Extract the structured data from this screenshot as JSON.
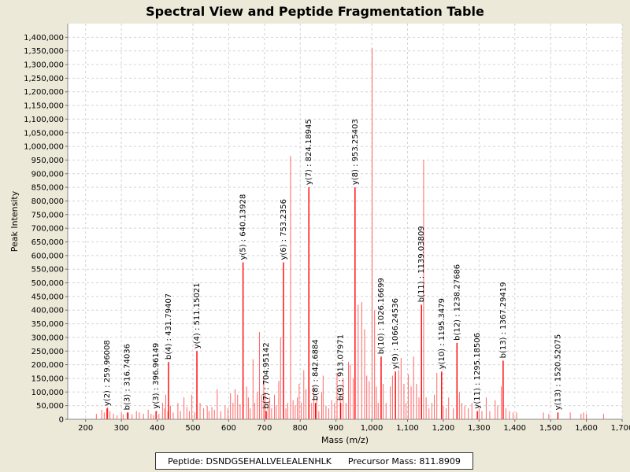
{
  "chart_data": {
    "type": "bar",
    "title": "Spectral View and Peptide Fragmentation Table",
    "xlabel": "Mass (m/z)",
    "ylabel": "Peak Intensity",
    "xlim": [
      150,
      1700
    ],
    "ylim": [
      0,
      1450000
    ],
    "grid": true,
    "x_ticks": [
      200,
      300,
      400,
      500,
      600,
      700,
      800,
      900,
      1000,
      1100,
      1200,
      1300,
      1400,
      1500,
      1600,
      1700
    ],
    "x_tick_labels": [
      "200",
      "300",
      "400",
      "500",
      "600",
      "700",
      "800",
      "900",
      "1,000",
      "1,100",
      "1,200",
      "1,300",
      "1,400",
      "1,500",
      "1,600",
      "1,700"
    ],
    "y_ticks": [
      0,
      50000,
      100000,
      150000,
      200000,
      250000,
      300000,
      350000,
      400000,
      450000,
      500000,
      550000,
      600000,
      650000,
      700000,
      750000,
      800000,
      850000,
      900000,
      950000,
      1000000,
      1050000,
      1100000,
      1150000,
      1200000,
      1250000,
      1300000,
      1350000,
      1400000
    ],
    "y_tick_labels": [
      "0",
      "50,000",
      "100,000",
      "150,000",
      "200,000",
      "250,000",
      "300,000",
      "350,000",
      "400,000",
      "450,000",
      "500,000",
      "550,000",
      "600,000",
      "650,000",
      "700,000",
      "750,000",
      "800,000",
      "850,000",
      "900,000",
      "950,000",
      "1,000,000",
      "1,050,000",
      "1,100,000",
      "1,150,000",
      "1,200,000",
      "1,250,000",
      "1,300,000",
      "1,350,000",
      "1,400,000"
    ],
    "peak_color": "#ff6666",
    "peaks": [
      {
        "x": 230,
        "y": 20000
      },
      {
        "x": 245,
        "y": 35000
      },
      {
        "x": 252,
        "y": 25000
      },
      {
        "x": 262,
        "y": 45000
      },
      {
        "x": 268,
        "y": 30000
      },
      {
        "x": 278,
        "y": 20000
      },
      {
        "x": 288,
        "y": 15000
      },
      {
        "x": 300,
        "y": 25000
      },
      {
        "x": 305,
        "y": 18000
      },
      {
        "x": 320,
        "y": 25000
      },
      {
        "x": 330,
        "y": 18000
      },
      {
        "x": 342,
        "y": 30000
      },
      {
        "x": 350,
        "y": 25000
      },
      {
        "x": 362,
        "y": 20000
      },
      {
        "x": 375,
        "y": 35000
      },
      {
        "x": 383,
        "y": 20000
      },
      {
        "x": 390,
        "y": 15000
      },
      {
        "x": 405,
        "y": 20000
      },
      {
        "x": 415,
        "y": 60000
      },
      {
        "x": 420,
        "y": 40000
      },
      {
        "x": 424,
        "y": 90000
      },
      {
        "x": 430,
        "y": 30000
      },
      {
        "x": 437,
        "y": 50000
      },
      {
        "x": 445,
        "y": 25000
      },
      {
        "x": 458,
        "y": 60000
      },
      {
        "x": 465,
        "y": 30000
      },
      {
        "x": 475,
        "y": 80000
      },
      {
        "x": 483,
        "y": 45000
      },
      {
        "x": 490,
        "y": 30000
      },
      {
        "x": 497,
        "y": 90000
      },
      {
        "x": 505,
        "y": 25000
      },
      {
        "x": 520,
        "y": 60000
      },
      {
        "x": 530,
        "y": 40000
      },
      {
        "x": 540,
        "y": 50000
      },
      {
        "x": 545,
        "y": 30000
      },
      {
        "x": 553,
        "y": 45000
      },
      {
        "x": 560,
        "y": 35000
      },
      {
        "x": 568,
        "y": 110000
      },
      {
        "x": 578,
        "y": 30000
      },
      {
        "x": 590,
        "y": 50000
      },
      {
        "x": 598,
        "y": 40000
      },
      {
        "x": 605,
        "y": 95000
      },
      {
        "x": 612,
        "y": 60000
      },
      {
        "x": 618,
        "y": 110000
      },
      {
        "x": 625,
        "y": 90000
      },
      {
        "x": 632,
        "y": 55000
      },
      {
        "x": 650,
        "y": 120000
      },
      {
        "x": 655,
        "y": 80000
      },
      {
        "x": 660,
        "y": 40000
      },
      {
        "x": 668,
        "y": 220000
      },
      {
        "x": 673,
        "y": 60000
      },
      {
        "x": 680,
        "y": 100000
      },
      {
        "x": 686,
        "y": 320000
      },
      {
        "x": 692,
        "y": 90000
      },
      {
        "x": 698,
        "y": 150000
      },
      {
        "x": 702,
        "y": 100000
      },
      {
        "x": 710,
        "y": 60000
      },
      {
        "x": 715,
        "y": 80000
      },
      {
        "x": 720,
        "y": 40000
      },
      {
        "x": 728,
        "y": 90000
      },
      {
        "x": 733,
        "y": 50000
      },
      {
        "x": 740,
        "y": 140000
      },
      {
        "x": 745,
        "y": 300000
      },
      {
        "x": 760,
        "y": 40000
      },
      {
        "x": 765,
        "y": 60000
      },
      {
        "x": 773,
        "y": 965000
      },
      {
        "x": 780,
        "y": 70000
      },
      {
        "x": 786,
        "y": 50000
      },
      {
        "x": 792,
        "y": 80000
      },
      {
        "x": 797,
        "y": 130000
      },
      {
        "x": 803,
        "y": 60000
      },
      {
        "x": 810,
        "y": 180000
      },
      {
        "x": 816,
        "y": 110000
      },
      {
        "x": 832,
        "y": 60000
      },
      {
        "x": 838,
        "y": 120000
      },
      {
        "x": 846,
        "y": 80000
      },
      {
        "x": 852,
        "y": 30000
      },
      {
        "x": 860,
        "y": 100000
      },
      {
        "x": 864,
        "y": 160000
      },
      {
        "x": 872,
        "y": 50000
      },
      {
        "x": 880,
        "y": 40000
      },
      {
        "x": 888,
        "y": 70000
      },
      {
        "x": 896,
        "y": 60000
      },
      {
        "x": 903,
        "y": 170000
      },
      {
        "x": 912,
        "y": 90000
      },
      {
        "x": 920,
        "y": 150000
      },
      {
        "x": 928,
        "y": 60000
      },
      {
        "x": 935,
        "y": 210000
      },
      {
        "x": 940,
        "y": 200000
      },
      {
        "x": 948,
        "y": 150000
      },
      {
        "x": 962,
        "y": 420000
      },
      {
        "x": 972,
        "y": 430000
      },
      {
        "x": 980,
        "y": 330000
      },
      {
        "x": 986,
        "y": 160000
      },
      {
        "x": 993,
        "y": 140000
      },
      {
        "x": 1001,
        "y": 1360000
      },
      {
        "x": 1008,
        "y": 400000
      },
      {
        "x": 1013,
        "y": 120000
      },
      {
        "x": 1018,
        "y": 60000
      },
      {
        "x": 1032,
        "y": 130000
      },
      {
        "x": 1040,
        "y": 60000
      },
      {
        "x": 1052,
        "y": 120000
      },
      {
        "x": 1058,
        "y": 160000
      },
      {
        "x": 1075,
        "y": 180000
      },
      {
        "x": 1082,
        "y": 225000
      },
      {
        "x": 1090,
        "y": 130000
      },
      {
        "x": 1096,
        "y": 60000
      },
      {
        "x": 1102,
        "y": 165000
      },
      {
        "x": 1110,
        "y": 120000
      },
      {
        "x": 1117,
        "y": 230000
      },
      {
        "x": 1125,
        "y": 130000
      },
      {
        "x": 1132,
        "y": 80000
      },
      {
        "x": 1145,
        "y": 950000
      },
      {
        "x": 1152,
        "y": 80000
      },
      {
        "x": 1160,
        "y": 40000
      },
      {
        "x": 1168,
        "y": 60000
      },
      {
        "x": 1175,
        "y": 90000
      },
      {
        "x": 1182,
        "y": 170000
      },
      {
        "x": 1200,
        "y": 50000
      },
      {
        "x": 1208,
        "y": 40000
      },
      {
        "x": 1215,
        "y": 80000
      },
      {
        "x": 1228,
        "y": 40000
      },
      {
        "x": 1245,
        "y": 100000
      },
      {
        "x": 1252,
        "y": 60000
      },
      {
        "x": 1260,
        "y": 50000
      },
      {
        "x": 1270,
        "y": 40000
      },
      {
        "x": 1280,
        "y": 60000
      },
      {
        "x": 1300,
        "y": 40000
      },
      {
        "x": 1308,
        "y": 30000
      },
      {
        "x": 1320,
        "y": 80000
      },
      {
        "x": 1330,
        "y": 30000
      },
      {
        "x": 1345,
        "y": 70000
      },
      {
        "x": 1352,
        "y": 50000
      },
      {
        "x": 1362,
        "y": 120000
      },
      {
        "x": 1375,
        "y": 40000
      },
      {
        "x": 1385,
        "y": 30000
      },
      {
        "x": 1395,
        "y": 25000
      },
      {
        "x": 1405,
        "y": 25000
      },
      {
        "x": 1480,
        "y": 25000
      },
      {
        "x": 1495,
        "y": 20000
      },
      {
        "x": 1555,
        "y": 25000
      },
      {
        "x": 1585,
        "y": 20000
      },
      {
        "x": 1592,
        "y": 25000
      },
      {
        "x": 1600,
        "y": 20000
      },
      {
        "x": 1648,
        "y": 20000
      }
    ],
    "annotations": [
      {
        "label": "y(2) : 259.96008",
        "x": 259.96,
        "y": 40000
      },
      {
        "label": "b(3) : 316.74036",
        "x": 316.74,
        "y": 25000
      },
      {
        "label": "y(3) : 396.96149",
        "x": 396.96,
        "y": 30000
      },
      {
        "label": "b(4) : 431.79407",
        "x": 431.79,
        "y": 210000
      },
      {
        "label": "y(4) : 511.15021",
        "x": 511.15,
        "y": 250000
      },
      {
        "label": "y(5) : 640.13928",
        "x": 640.14,
        "y": 575000
      },
      {
        "label": "b(7) : 704.95142",
        "x": 704.95,
        "y": 30000
      },
      {
        "label": "y(6) : 753.2356",
        "x": 753.24,
        "y": 575000
      },
      {
        "label": "y(7) : 824.18945",
        "x": 824.19,
        "y": 850000
      },
      {
        "label": "b(8) : 842.6884",
        "x": 842.69,
        "y": 60000
      },
      {
        "label": "b(9) : 913.07971",
        "x": 913.08,
        "y": 60000
      },
      {
        "label": "y(8) : 953.25403",
        "x": 953.25,
        "y": 850000
      },
      {
        "label": "b(10) : 1026.16699",
        "x": 1026.17,
        "y": 230000
      },
      {
        "label": "y(9) : 1066.24536",
        "x": 1066.25,
        "y": 175000
      },
      {
        "label": "b(11) : 1139.03809",
        "x": 1139.04,
        "y": 420000
      },
      {
        "label": "y(10) : 1195.3479",
        "x": 1195.35,
        "y": 175000
      },
      {
        "label": "b(12) : 1238.27686",
        "x": 1238.28,
        "y": 280000
      },
      {
        "label": "y(11) : 1295.18506",
        "x": 1295.19,
        "y": 30000
      },
      {
        "label": "b(13) : 1367.29419",
        "x": 1367.29,
        "y": 215000
      },
      {
        "label": "y(13) : 1520.52075",
        "x": 1520.52,
        "y": 25000
      }
    ]
  },
  "legend": {
    "peptide": "Peptide: DSNDGSEHALLVELEALENHLK",
    "precursor": "Precursor Mass: 811.8909"
  }
}
